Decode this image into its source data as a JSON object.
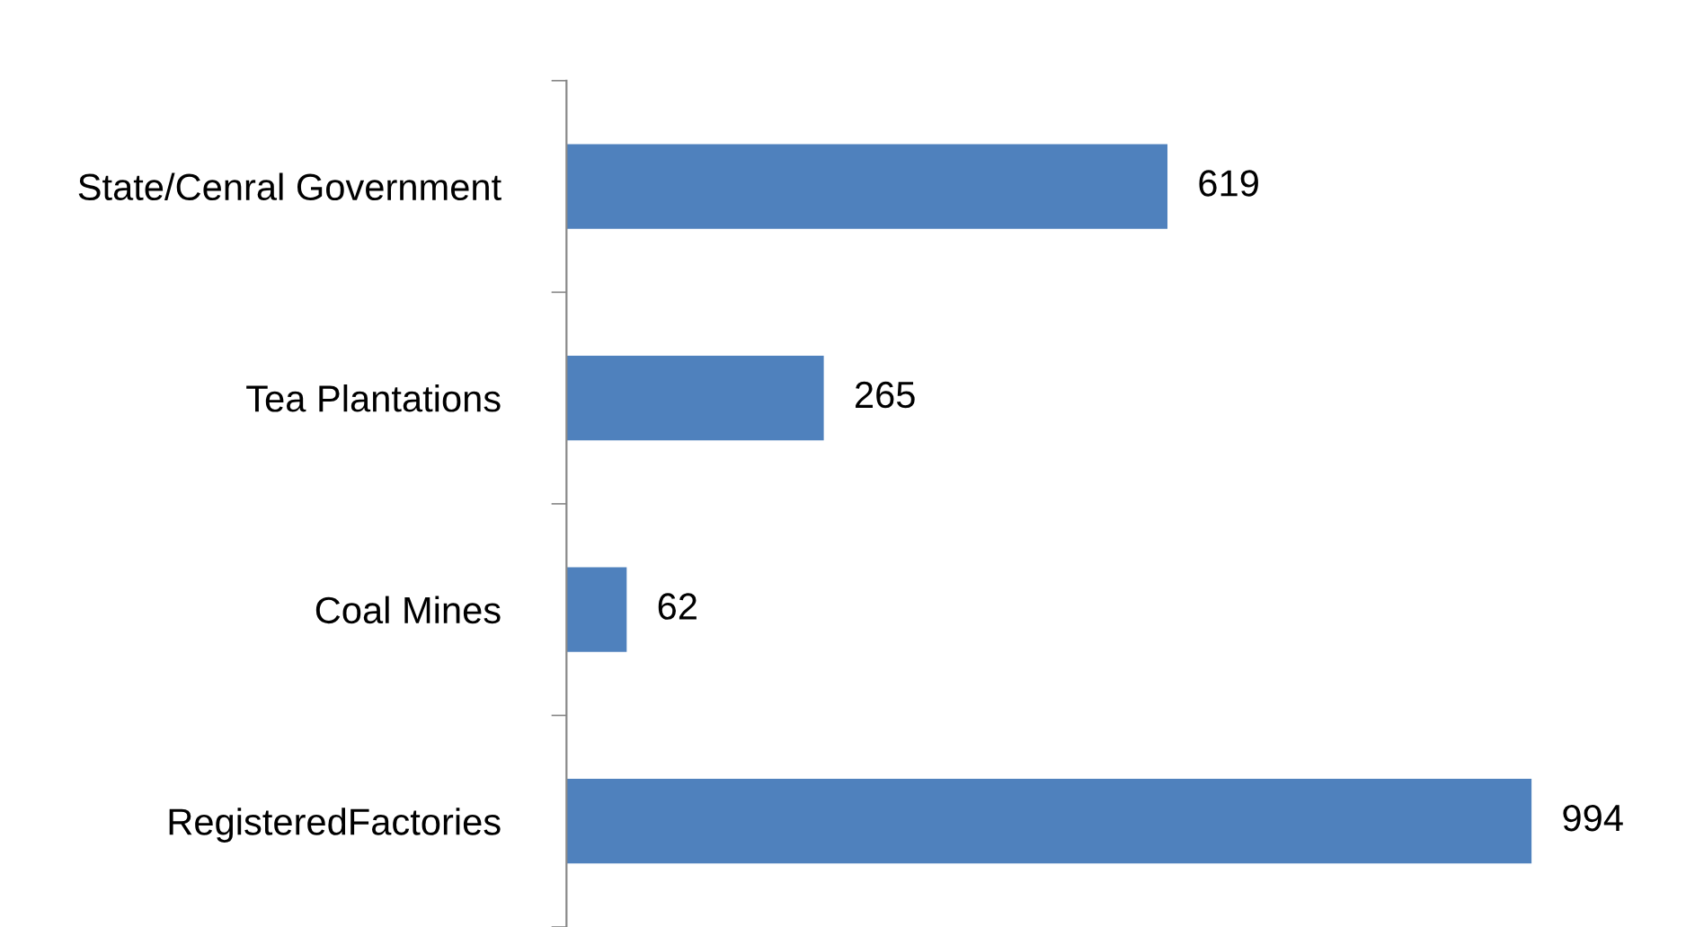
{
  "chart_data": {
    "type": "bar",
    "orientation": "horizontal",
    "categories": [
      "State/Cenral Government",
      "Tea Plantations",
      "Coal Mines",
      "RegisteredFactories"
    ],
    "values": [
      619,
      265,
      62,
      994
    ],
    "color": "#4f81bd",
    "data_labels": true,
    "grid": false,
    "legend": false
  }
}
